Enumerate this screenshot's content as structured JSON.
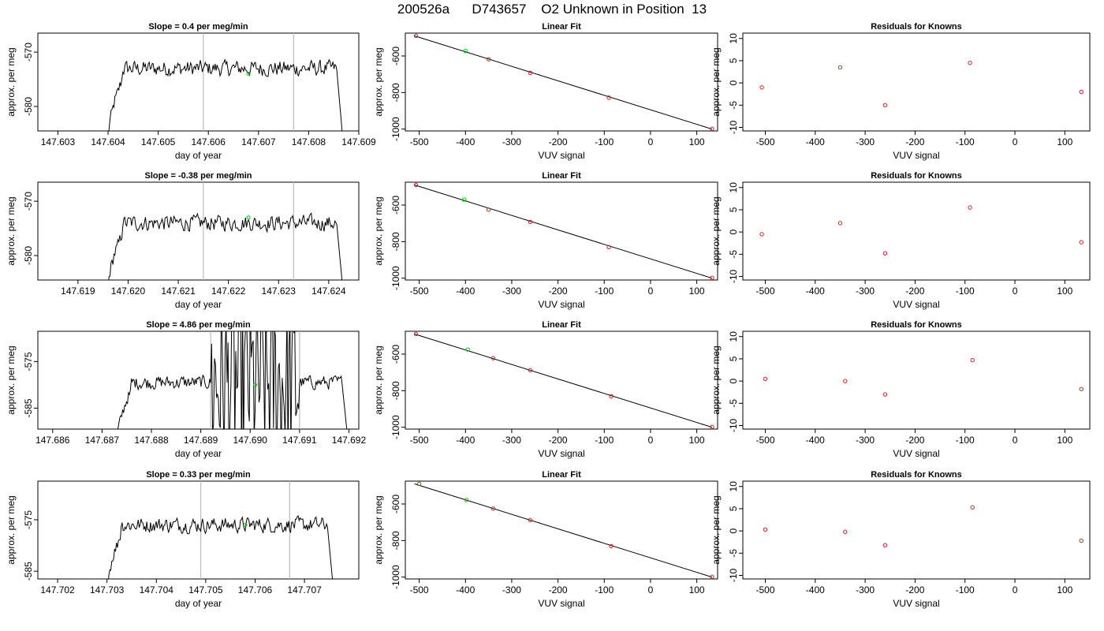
{
  "figure": {
    "title": "200526a      D743657    O2 Unknown in Position  13"
  },
  "colors": {
    "line": "#000000",
    "marker_green": "#00cc00",
    "marker_red": "#d22222",
    "vline": "#bbbbbb"
  },
  "chart_data": [
    {
      "type": "line",
      "title": "Slope =  0.4  per meg/min",
      "xlabel": "day of year",
      "ylabel": "approx. per meg",
      "xlim": [
        147.6026,
        147.609
      ],
      "ylim": [
        -584.5,
        -566.5
      ],
      "xticks": [
        147.603,
        147.604,
        147.605,
        147.606,
        147.607,
        147.608,
        147.609
      ],
      "xtick_labels": [
        "147.603",
        "147.604",
        "147.605",
        "147.606",
        "147.607",
        "147.608",
        "147.609"
      ],
      "yticks": [
        -570,
        -580
      ],
      "ytick_labels": [
        "-570",
        "-580"
      ],
      "vlines": [
        147.6059,
        147.6077
      ],
      "signal": {
        "x_start": 147.604,
        "x_end": 147.6087,
        "rise_from": -586,
        "level": -573.0,
        "drop_to": -588
      },
      "marker": {
        "x": 147.6068,
        "y": -574.0
      }
    },
    {
      "type": "scatter",
      "title": "Linear Fit",
      "xlabel": "VUV signal",
      "ylabel": "approx. per meg",
      "xlim": [
        -530,
        145
      ],
      "ylim": [
        -1010,
        -475
      ],
      "xticks": [
        -500,
        -400,
        -300,
        -200,
        -100,
        0,
        100
      ],
      "xtick_labels": [
        "-500",
        "-400",
        "-300",
        "-200",
        "-100",
        "0",
        "100"
      ],
      "yticks": [
        -600,
        -800,
        -1000
      ],
      "ytick_labels": [
        "-600",
        "-800",
        "-1000"
      ],
      "fit_line": [
        [
          -510,
          -490
        ],
        [
          133,
          -1000
        ]
      ],
      "points": [
        [
          -507,
          -490
        ],
        [
          -350,
          -618
        ],
        [
          -260,
          -692
        ],
        [
          -90,
          -828
        ],
        [
          133,
          -998
        ]
      ],
      "unknown_point": [
        -400,
        -572
      ]
    },
    {
      "type": "scatter",
      "title": "Residuals for Knowns",
      "xlabel": "VUV signal",
      "ylabel": "approx. per meg",
      "xlim": [
        -545,
        150
      ],
      "ylim": [
        -10.8,
        11.2
      ],
      "xticks": [
        -500,
        -400,
        -300,
        -200,
        -100,
        0,
        100
      ],
      "xtick_labels": [
        "-500",
        "-400",
        "-300",
        "-200",
        "-100",
        "0",
        "100"
      ],
      "yticks": [
        -10,
        -5,
        0,
        5,
        10
      ],
      "ytick_labels": [
        "-10",
        "-5",
        "0",
        "5",
        "10"
      ],
      "points": [
        [
          -507,
          -1.0
        ],
        [
          -350,
          3.5
        ],
        [
          -260,
          -5.0
        ],
        [
          -90,
          4.5
        ],
        [
          133,
          -2.0
        ]
      ]
    },
    {
      "type": "line",
      "title": "Slope =  -0.38  per meg/min",
      "xlabel": "day of year",
      "ylabel": "approx. per meg",
      "xlim": [
        147.6182,
        147.6246
      ],
      "ylim": [
        -584.5,
        -566.5
      ],
      "xticks": [
        147.619,
        147.62,
        147.621,
        147.622,
        147.623,
        147.624
      ],
      "xtick_labels": [
        "147.619",
        "147.620",
        "147.621",
        "147.622",
        "147.623",
        "147.624"
      ],
      "yticks": [
        -570,
        -580
      ],
      "ytick_labels": [
        "-570",
        "-580"
      ],
      "vlines": [
        147.6215,
        147.6233
      ],
      "signal": {
        "x_start": 147.6196,
        "x_end": 147.6243,
        "rise_from": -586,
        "level": -574.0,
        "drop_to": -588
      },
      "marker": {
        "x": 147.6224,
        "y": -573.0
      }
    },
    {
      "type": "scatter",
      "title": "Linear Fit",
      "xlabel": "VUV signal",
      "ylabel": "approx. per meg",
      "xlim": [
        -530,
        145
      ],
      "ylim": [
        -1010,
        -475
      ],
      "xticks": [
        -500,
        -400,
        -300,
        -200,
        -100,
        0,
        100
      ],
      "xtick_labels": [
        "-500",
        "-400",
        "-300",
        "-200",
        "-100",
        "0",
        "100"
      ],
      "yticks": [
        -600,
        -800,
        -1000
      ],
      "ytick_labels": [
        "-600",
        "-800",
        "-1000"
      ],
      "fit_line": [
        [
          -510,
          -490
        ],
        [
          133,
          -1000
        ]
      ],
      "points": [
        [
          -507,
          -490
        ],
        [
          -350,
          -625
        ],
        [
          -260,
          -692
        ],
        [
          -90,
          -830
        ],
        [
          133,
          -998
        ]
      ],
      "unknown_point": [
        -403,
        -570
      ]
    },
    {
      "type": "scatter",
      "title": "Residuals for Knowns",
      "xlabel": "VUV signal",
      "ylabel": "approx. per meg",
      "xlim": [
        -545,
        150
      ],
      "ylim": [
        -10.8,
        11.2
      ],
      "xticks": [
        -500,
        -400,
        -300,
        -200,
        -100,
        0,
        100
      ],
      "xtick_labels": [
        "-500",
        "-400",
        "-300",
        "-200",
        "-100",
        "0",
        "100"
      ],
      "yticks": [
        -10,
        -5,
        0,
        5,
        10
      ],
      "ytick_labels": [
        "-10",
        "-5",
        "0",
        "5",
        "10"
      ],
      "points": [
        [
          -507,
          -0.5
        ],
        [
          -350,
          2.0
        ],
        [
          -260,
          -4.8
        ],
        [
          -90,
          5.5
        ],
        [
          133,
          -2.3
        ]
      ]
    },
    {
      "type": "line",
      "title": "Slope =  4.86  per meg/min",
      "xlabel": "day of year",
      "ylabel": "approx. per meg",
      "xlim": [
        147.6857,
        147.6922
      ],
      "ylim": [
        -589.5,
        -568.5
      ],
      "xticks": [
        147.686,
        147.687,
        147.688,
        147.689,
        147.69,
        147.691,
        147.692
      ],
      "xtick_labels": [
        "147.686",
        "147.687",
        "147.688",
        "147.689",
        "147.690",
        "147.691",
        "147.692"
      ],
      "yticks": [
        -575,
        -585
      ],
      "ytick_labels": [
        "-575",
        "-585"
      ],
      "vlines": [
        147.6892,
        147.691
      ],
      "signal": {
        "x_start": 147.6873,
        "x_end": 147.692,
        "rise_from": -592,
        "level": -579.5,
        "drop_to": -594,
        "noisy_from": 147.6892,
        "noisy_to": 147.691
      },
      "marker": {
        "x": 147.6901,
        "y": -580.0
      }
    },
    {
      "type": "scatter",
      "title": "Linear Fit",
      "xlabel": "VUV signal",
      "ylabel": "approx. per meg",
      "xlim": [
        -530,
        145
      ],
      "ylim": [
        -1010,
        -475
      ],
      "xticks": [
        -500,
        -400,
        -300,
        -200,
        -100,
        0,
        100
      ],
      "xtick_labels": [
        "-500",
        "-400",
        "-300",
        "-200",
        "-100",
        "0",
        "100"
      ],
      "yticks": [
        -600,
        -800,
        -1000
      ],
      "ytick_labels": [
        "-600",
        "-800",
        "-1000"
      ],
      "fit_line": [
        [
          -510,
          -490
        ],
        [
          133,
          -1000
        ]
      ],
      "points": [
        [
          -507,
          -490
        ],
        [
          -340,
          -622
        ],
        [
          -260,
          -688
        ],
        [
          -85,
          -830
        ],
        [
          133,
          -998
        ]
      ],
      "unknown_point": [
        -395,
        -575
      ]
    },
    {
      "type": "scatter",
      "title": "Residuals for Knowns",
      "xlabel": "VUV signal",
      "ylabel": "approx. per meg",
      "xlim": [
        -545,
        150
      ],
      "ylim": [
        -10.8,
        11.2
      ],
      "xticks": [
        -500,
        -400,
        -300,
        -200,
        -100,
        0,
        100
      ],
      "xtick_labels": [
        "-500",
        "-400",
        "-300",
        "-200",
        "-100",
        "0",
        "100"
      ],
      "yticks": [
        -10,
        -5,
        0,
        5,
        10
      ],
      "ytick_labels": [
        "-10",
        "-5",
        "0",
        "5",
        "10"
      ],
      "points": [
        [
          -500,
          0.5
        ],
        [
          -340,
          0.0
        ],
        [
          -260,
          -3.0
        ],
        [
          -85,
          4.7
        ],
        [
          133,
          -1.8
        ]
      ]
    },
    {
      "type": "line",
      "title": "Slope =  0.33  per meg/min",
      "xlabel": "day of year",
      "ylabel": "approx. per meg",
      "xlim": [
        147.7016,
        147.7081
      ],
      "ylim": [
        -586.5,
        -567.5
      ],
      "xticks": [
        147.702,
        147.703,
        147.704,
        147.705,
        147.706,
        147.707
      ],
      "xtick_labels": [
        "147.702",
        "147.703",
        "147.704",
        "147.705",
        "147.706",
        "147.707"
      ],
      "yticks": [
        -575,
        -585
      ],
      "ytick_labels": [
        "-575",
        "-585"
      ],
      "vlines": [
        147.7049,
        147.7067
      ],
      "signal": {
        "x_start": 147.703,
        "x_end": 147.7076,
        "rise_from": -589,
        "level": -576.0,
        "drop_to": -590
      },
      "marker": {
        "x": 147.7058,
        "y": -576.0
      }
    },
    {
      "type": "scatter",
      "title": "Linear Fit",
      "xlabel": "VUV signal",
      "ylabel": "approx. per meg",
      "xlim": [
        -530,
        145
      ],
      "ylim": [
        -1010,
        -475
      ],
      "xticks": [
        -500,
        -400,
        -300,
        -200,
        -100,
        0,
        100
      ],
      "xtick_labels": [
        "-500",
        "-400",
        "-300",
        "-200",
        "-100",
        "0",
        "100"
      ],
      "yticks": [
        -600,
        -800,
        -1000
      ],
      "ytick_labels": [
        "-600",
        "-800",
        "-1000"
      ],
      "fit_line": [
        [
          -510,
          -490
        ],
        [
          133,
          -1000
        ]
      ],
      "points": [
        [
          -500,
          -490
        ],
        [
          -340,
          -625
        ],
        [
          -260,
          -688
        ],
        [
          -85,
          -830
        ],
        [
          133,
          -998
        ]
      ],
      "unknown_point": [
        -398,
        -578
      ]
    },
    {
      "type": "scatter",
      "title": "Residuals for Knowns",
      "xlabel": "VUV signal",
      "ylabel": "approx. per meg",
      "xlim": [
        -545,
        150
      ],
      "ylim": [
        -10.8,
        11.2
      ],
      "xticks": [
        -500,
        -400,
        -300,
        -200,
        -100,
        0,
        100
      ],
      "xtick_labels": [
        "-500",
        "-400",
        "-300",
        "-200",
        "-100",
        "0",
        "100"
      ],
      "yticks": [
        -10,
        -5,
        0,
        5,
        10
      ],
      "ytick_labels": [
        "-10",
        "-5",
        "0",
        "5",
        "10"
      ],
      "points": [
        [
          -500,
          0.3
        ],
        [
          -340,
          -0.2
        ],
        [
          -260,
          -3.2
        ],
        [
          -85,
          5.3
        ],
        [
          133,
          -2.2
        ]
      ]
    }
  ]
}
